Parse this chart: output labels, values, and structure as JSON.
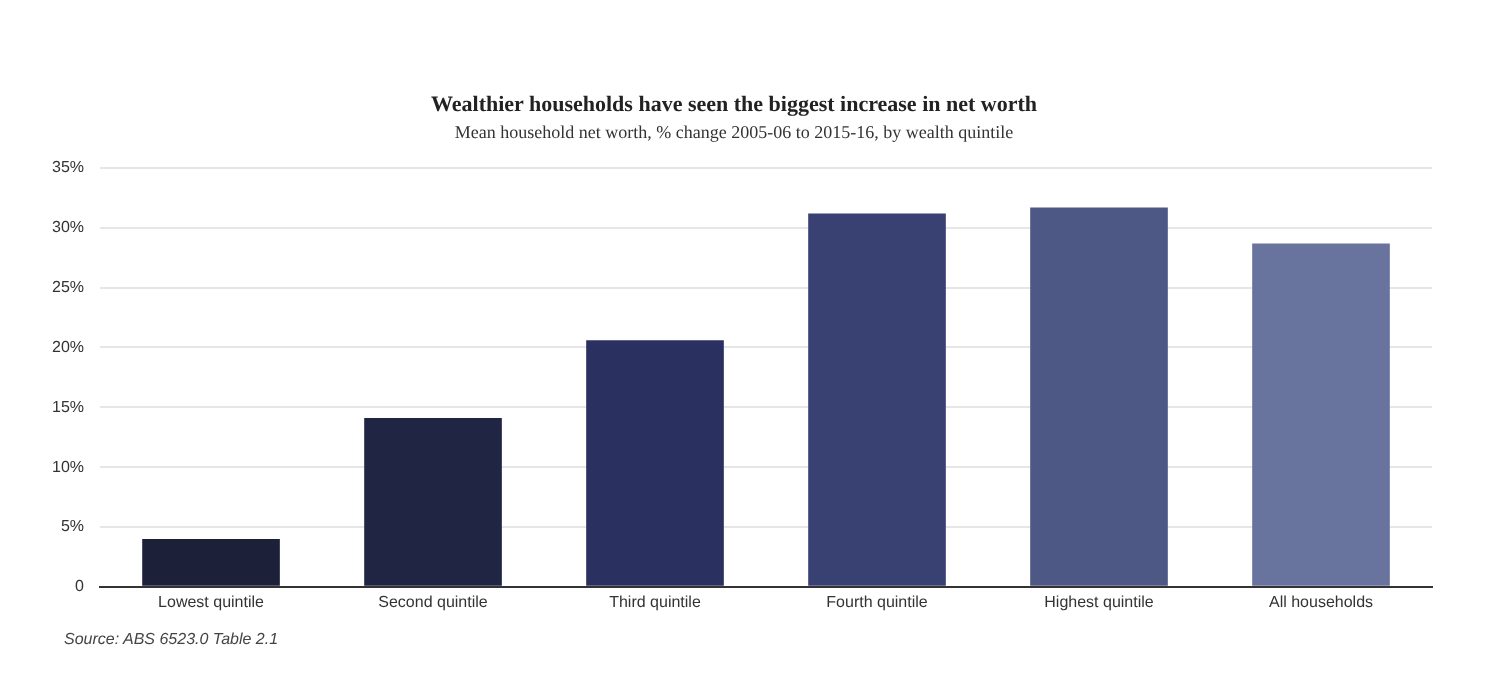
{
  "chart_data": {
    "type": "bar",
    "title": "Wealthier households have seen the biggest increase in net worth",
    "subtitle": "Mean household net worth, % change 2005-06 to 2015-16, by wealth quintile",
    "categories": [
      "Lowest quintile",
      "Second quintile",
      "Third quintile",
      "Fourth quintile",
      "Highest quintile",
      "All households"
    ],
    "values": [
      4.0,
      14.1,
      20.6,
      31.2,
      31.7,
      28.7
    ],
    "colors": [
      "#1c2038",
      "#1f2543",
      "#2a3060",
      "#394072",
      "#4e5885",
      "#68739e"
    ],
    "ylim": [
      0,
      35
    ],
    "yticks": [
      {
        "value": 0,
        "label": "0"
      },
      {
        "value": 5,
        "label": "5%"
      },
      {
        "value": 10,
        "label": "10%"
      },
      {
        "value": 15,
        "label": "15%"
      },
      {
        "value": 20,
        "label": "20%"
      },
      {
        "value": 25,
        "label": "25%"
      },
      {
        "value": 30,
        "label": "30%"
      },
      {
        "value": 35,
        "label": "35%"
      }
    ],
    "grid": "y",
    "annotations": [
      "Source: ABS 6523.0 Table 2.1"
    ]
  }
}
